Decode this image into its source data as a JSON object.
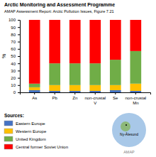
{
  "chart_data": {
    "type": "bar",
    "stacked": true,
    "grid": false,
    "legend": "bottom",
    "title": "Arctic Monitoring and Assessment Programme",
    "subtitle": "AMAP Assessment Report: Arctic Pollution Issues, Figure 7.21",
    "y_label": "%",
    "legend_title": "Sources:",
    "annotations": [
      "Ny-Ålesund",
      "AMAP"
    ],
    "categories": [
      "As",
      "Pb",
      "Zn",
      "non-crustal\nV",
      "Se",
      "non-crustal\nMn"
    ],
    "series": [
      {
        "name": "Eastern Europe",
        "color": "#4472C4",
        "values": [
          3,
          2,
          2,
          2,
          3,
          2
        ]
      },
      {
        "name": "Western Europe",
        "color": "#FFC000",
        "values": [
          4,
          8,
          8,
          8,
          7,
          10
        ]
      },
      {
        "name": "United Kingdom",
        "color": "#70AD47",
        "values": [
          5,
          30,
          30,
          30,
          35,
          45
        ]
      },
      {
        "name": "Central former Soviet Union",
        "color": "#FF0000",
        "values": [
          88,
          60,
          60,
          60,
          55,
          43
        ]
      }
    ],
    "ylim": [
      0,
      100
    ],
    "yticks": [
      0,
      10,
      20,
      30,
      40,
      50,
      60,
      70,
      80,
      90,
      100
    ]
  }
}
